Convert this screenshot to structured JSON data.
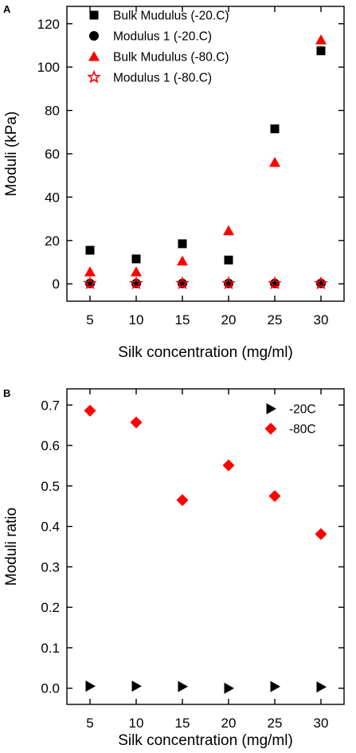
{
  "chart_data": [
    {
      "type": "scatter",
      "panel_label": "A",
      "xlabel": "Silk concentration (mg/ml)",
      "ylabel": "Moduli (kPa)",
      "xlim": [
        2.5,
        32.5
      ],
      "ylim": [
        -8,
        128
      ],
      "xticks": [
        5,
        10,
        15,
        20,
        25,
        30
      ],
      "yticks": [
        0,
        20,
        40,
        60,
        80,
        100,
        120
      ],
      "legend_position": "top-left",
      "grid": false,
      "series": [
        {
          "name": "Bulk Mudulus (-20.C)",
          "marker": "square",
          "color": "#000000",
          "x": [
            5,
            10,
            15,
            20,
            25,
            30
          ],
          "y": [
            15.5,
            11.5,
            18.5,
            11,
            71.5,
            107.5
          ]
        },
        {
          "name": "Modulus 1 (-20.C)",
          "marker": "circle",
          "color": "#000000",
          "x": [
            5,
            10,
            15,
            20,
            25,
            30
          ],
          "y": [
            0.2,
            0.2,
            0.2,
            0.2,
            0.2,
            0.2
          ]
        },
        {
          "name": "Bulk Mudulus (-80.C)",
          "marker": "triangle",
          "color": "#ff0000",
          "x": [
            5,
            10,
            15,
            20,
            25,
            30
          ],
          "y": [
            5.5,
            5.5,
            10.5,
            24.5,
            56,
            112.5
          ]
        },
        {
          "name": "Modulus 1 (-80.C)",
          "marker": "star-open",
          "color": "#ff0000",
          "x": [
            5,
            10,
            15,
            20,
            25,
            30
          ],
          "y": [
            0.2,
            0.2,
            0.2,
            0.2,
            0.2,
            0.2
          ]
        }
      ]
    },
    {
      "type": "scatter",
      "panel_label": "B",
      "xlabel": "Silk concentration (mg/ml)",
      "ylabel": "Moduli ratio",
      "xlim": [
        2.5,
        32.5
      ],
      "ylim": [
        -0.04,
        0.74
      ],
      "xticks": [
        5,
        10,
        15,
        20,
        25,
        30
      ],
      "yticks": [
        "0.0",
        "0.1",
        "0.2",
        "0.3",
        "0.4",
        "0.5",
        "0.6",
        "0.7"
      ],
      "legend_position": "top-right",
      "grid": false,
      "series": [
        {
          "name": "-20C",
          "marker": "triangle-right",
          "color": "#000000",
          "x": [
            5,
            10,
            15,
            20,
            25,
            30
          ],
          "y": [
            0.005,
            0.005,
            0.004,
            0.0,
            0.004,
            0.003
          ]
        },
        {
          "name": "-80C",
          "marker": "diamond",
          "color": "#ff0000",
          "x": [
            5,
            10,
            15,
            20,
            25,
            30
          ],
          "y": [
            0.686,
            0.657,
            0.465,
            0.551,
            0.475,
            0.381
          ]
        }
      ]
    }
  ]
}
